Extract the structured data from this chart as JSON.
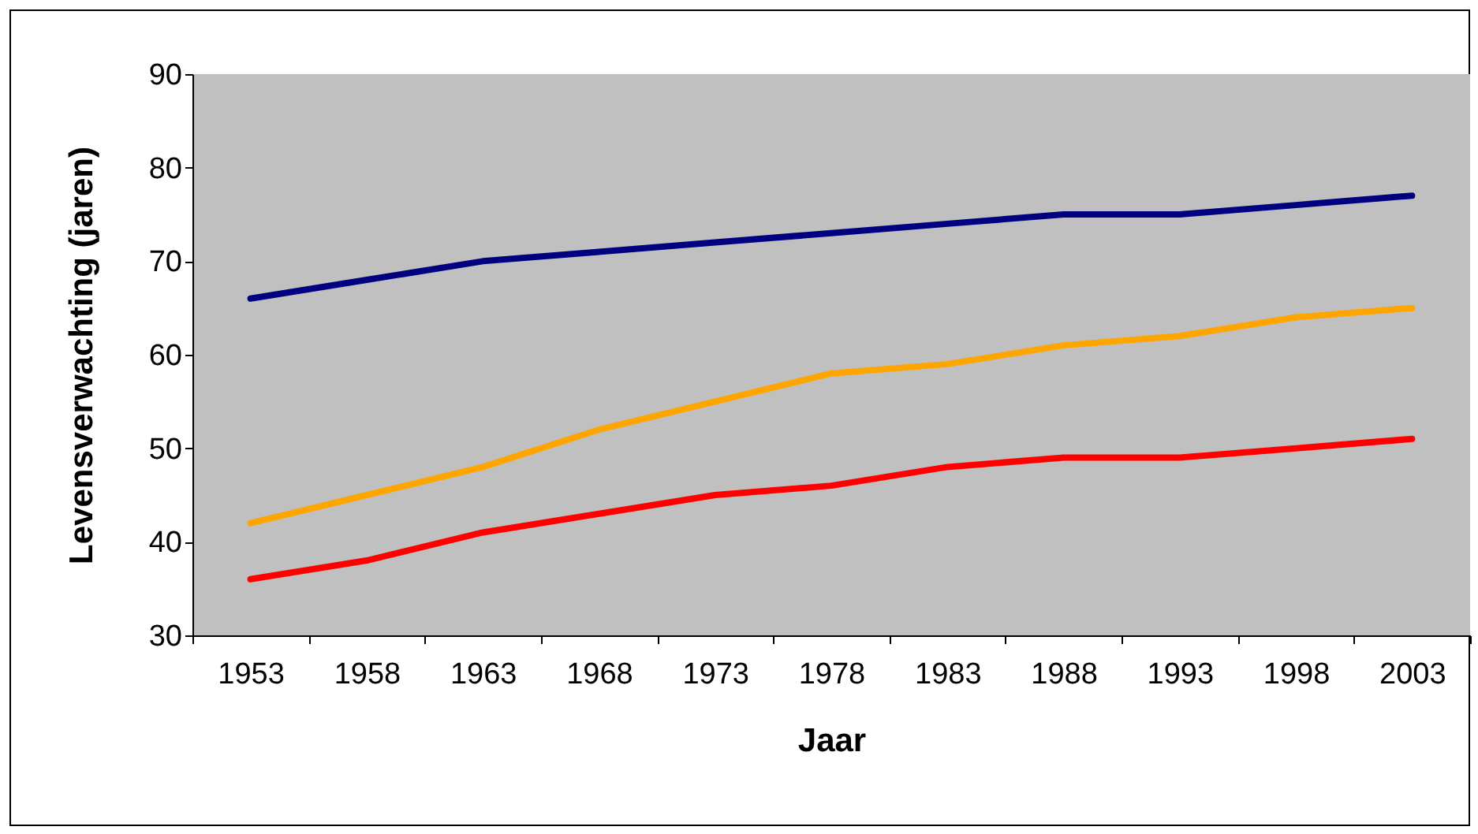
{
  "chart_data": {
    "type": "line",
    "xlabel": "Jaar",
    "ylabel": "Levensverwachting (jaren)",
    "categories": [
      "1953",
      "1958",
      "1963",
      "1968",
      "1973",
      "1978",
      "1983",
      "1988",
      "1993",
      "1998",
      "2003"
    ],
    "series": [
      {
        "color": "#000080",
        "values": [
          66,
          68,
          70,
          71,
          72,
          73,
          74,
          75,
          75,
          76,
          77
        ]
      },
      {
        "color": "#ffa500",
        "values": [
          42,
          45,
          48,
          52,
          55,
          58,
          59,
          61,
          62,
          64,
          65
        ]
      },
      {
        "color": "#ff0000",
        "values": [
          36,
          38,
          41,
          43,
          45,
          46,
          48,
          49,
          49,
          50,
          51
        ]
      }
    ],
    "ylim": [
      30,
      90
    ],
    "yticks": [
      30,
      40,
      50,
      60,
      70,
      80,
      90
    ],
    "grid": false,
    "legend": false,
    "marker": "none",
    "line_style": "solid"
  }
}
